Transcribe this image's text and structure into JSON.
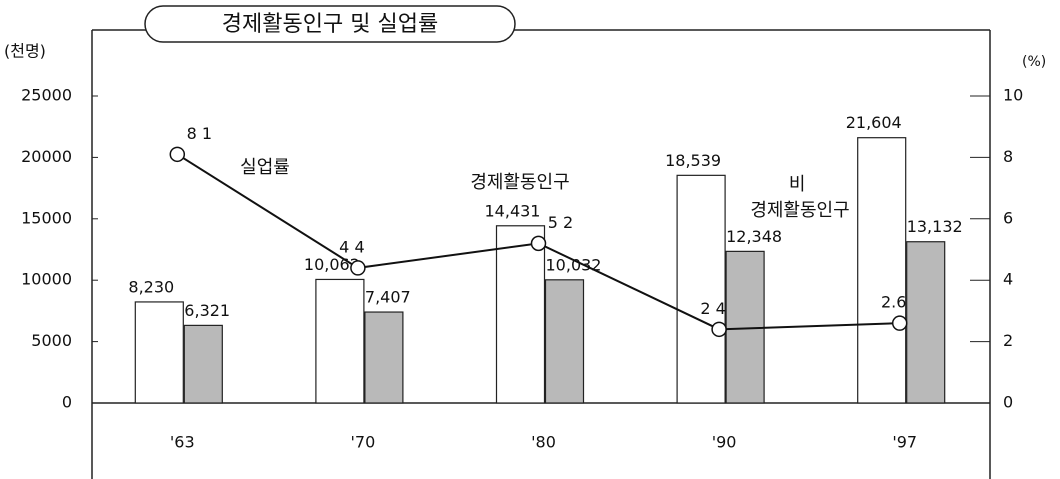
{
  "chart_data": {
    "type": "bar-line",
    "title": "경제활동인구 및 실업률",
    "y_label": "(천명)",
    "y2_label": "(%)",
    "categories": [
      "'63",
      "'70",
      "'80",
      "'90",
      "'97"
    ],
    "series": [
      {
        "name": "경제활동인구",
        "type": "bar",
        "color": "#ffffff",
        "values": [
          8230,
          10062,
          14431,
          18539,
          21604
        ],
        "value_labels": [
          "8,230",
          "10,062",
          "14,431",
          "18,539",
          "21,604"
        ]
      },
      {
        "name": "비 경제활동인구",
        "type": "bar",
        "color": "#b9b9b9",
        "values": [
          6321,
          7407,
          10032,
          12348,
          13132
        ],
        "value_labels": [
          "6,321",
          "7,407",
          "10,032",
          "12,348",
          "13,132"
        ]
      },
      {
        "name": "실업률",
        "type": "line",
        "axis": "y2",
        "color": "#111111",
        "values": [
          8.1,
          4.4,
          5.2,
          2.4,
          2.6
        ],
        "value_labels": [
          "8 1",
          "4 4",
          "5 2",
          "2 4",
          "2.6"
        ]
      }
    ],
    "ylim": [
      0,
      25000
    ],
    "yticks": [
      0,
      5000,
      10000,
      15000,
      20000,
      25000
    ],
    "y2lim": [
      0,
      10
    ],
    "y2ticks": [
      0,
      2,
      4,
      6,
      8,
      10
    ],
    "grid": false
  }
}
